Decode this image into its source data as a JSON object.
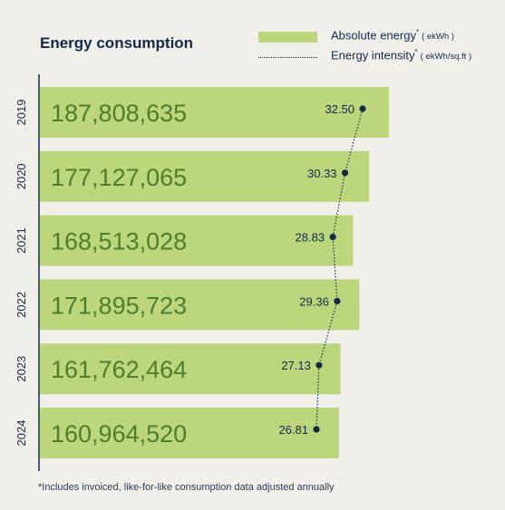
{
  "title": "Energy consumption",
  "legend": {
    "absolute_label": "Absolute energy",
    "absolute_marker": "*",
    "absolute_unit": "( ekWh )",
    "intensity_label": "Energy intensity",
    "intensity_marker": "*",
    "intensity_unit": "( ekWh/sq.ft )"
  },
  "footnote": "*Includes invoiced, like-for-like consumption data adjusted annually",
  "colors": {
    "bar": "#bcd67c",
    "bar_label": "#4e7d2c",
    "line": "#13294b",
    "text": "#13294b",
    "background": "#f1efea"
  },
  "chart_data": {
    "type": "bar",
    "orientation": "horizontal",
    "categories": [
      "2019",
      "2020",
      "2021",
      "2022",
      "2023",
      "2024"
    ],
    "series": [
      {
        "name": "Absolute energy",
        "unit": "ekWh",
        "type": "bar",
        "values": [
          187808635,
          177127065,
          168513028,
          171895723,
          161762464,
          160964520
        ],
        "labels": [
          "187,808,635",
          "177,127,065",
          "168,513,028",
          "171,895,723",
          "161,762,464",
          "160,964,520"
        ]
      },
      {
        "name": "Energy intensity",
        "unit": "ekWh/sq.ft",
        "type": "line",
        "values": [
          32.5,
          30.33,
          28.83,
          29.36,
          27.13,
          26.81
        ],
        "labels": [
          "32.50",
          "30.33",
          "28.83",
          "29.36",
          "27.13",
          "26.81"
        ]
      }
    ],
    "grid": false,
    "legend_position": "top-right"
  }
}
